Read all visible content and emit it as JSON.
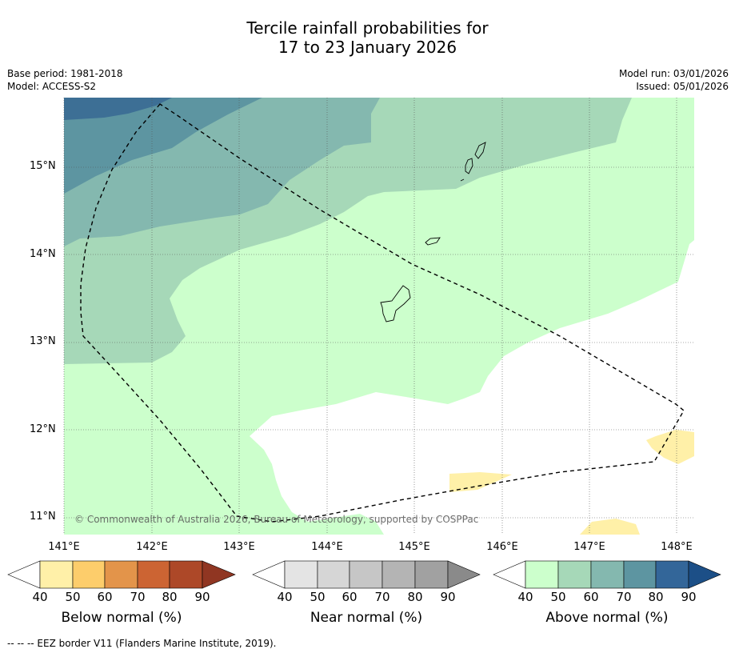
{
  "title": {
    "line1": "Tercile rainfall probabilities for",
    "line2": "17 to 23 January 2026"
  },
  "meta": {
    "base_period": "Base period: 1981-2018",
    "model": "Model: ACCESS-S2",
    "model_run": "Model run: 03/01/2026",
    "issued": "Issued: 05/01/2026"
  },
  "map": {
    "lat_labels": [
      "15°N",
      "14°N",
      "13°N",
      "12°N",
      "11°N"
    ],
    "lon_labels": [
      "141°E",
      "142°E",
      "143°E",
      "144°E",
      "145°E",
      "146°E",
      "147°E",
      "148°E"
    ],
    "copyright": "© Commonwealth of Australia 2026, Bureau of Meteorology, supported by COSPPac"
  },
  "colorbars": [
    {
      "title": "Below normal (%)",
      "ticks": [
        "40",
        "50",
        "60",
        "70",
        "80",
        "90"
      ],
      "colors": [
        "#fff0a8",
        "#fdcd6b",
        "#e3944a",
        "#cc6433",
        "#ad4828",
        "#903622"
      ]
    },
    {
      "title": "Near normal (%)",
      "ticks": [
        "40",
        "50",
        "60",
        "70",
        "80",
        "90"
      ],
      "colors": [
        "#e4e4e4",
        "#d6d6d6",
        "#c6c6c6",
        "#b4b4b4",
        "#a1a1a1",
        "#8a8a8a"
      ]
    },
    {
      "title": "Above normal (%)",
      "ticks": [
        "40",
        "50",
        "60",
        "70",
        "80",
        "90"
      ],
      "colors": [
        "#ccffcc",
        "#a6d8b8",
        "#84b8af",
        "#5d95a1",
        "#336699",
        "#1c4f87"
      ]
    }
  ],
  "footnote": "--  --  -- EEZ border V11 (Flanders Marine Institute, 2019)."
}
